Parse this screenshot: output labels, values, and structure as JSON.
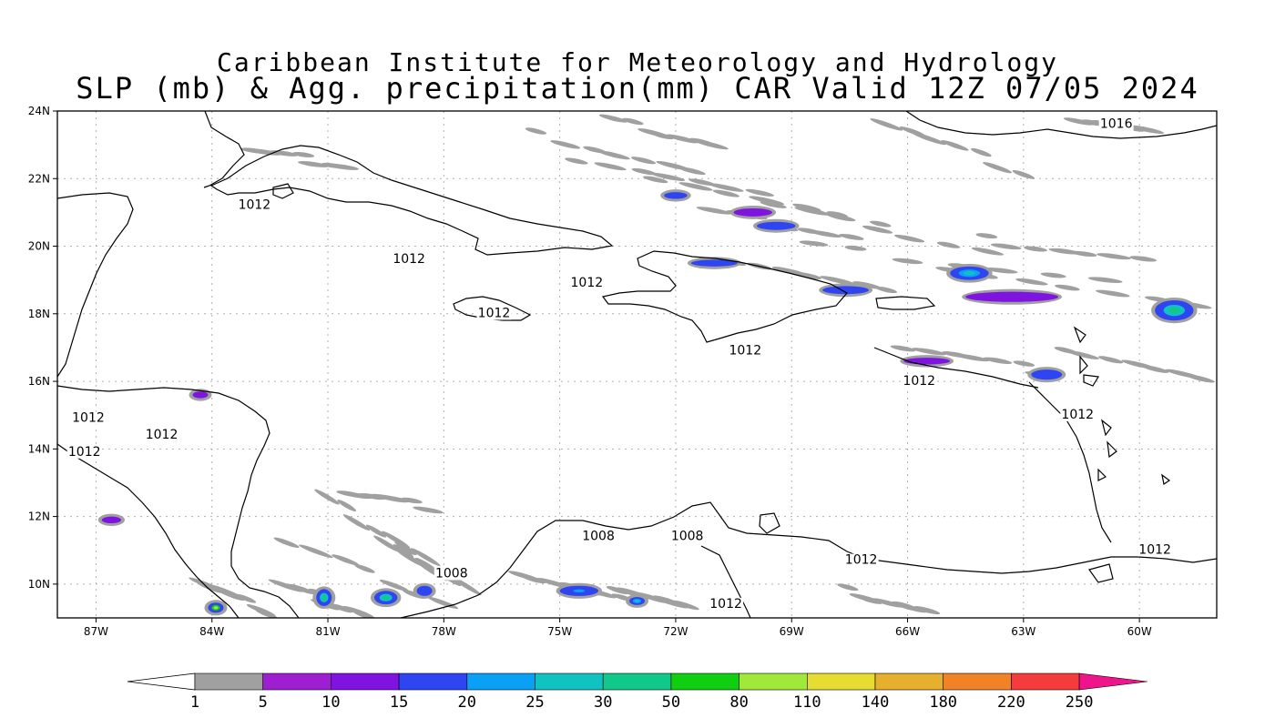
{
  "title_line1": "Caribbean Institute for Meteorology and Hydrology",
  "title_line2": "SLP (mb) & Agg. precipitation(mm) CAR Valid 12Z 07/05 2024",
  "map": {
    "lon_range": [
      -88,
      -58
    ],
    "lat_range": [
      9,
      24
    ],
    "lon_ticks": [
      {
        "lon": -87,
        "label": "87W"
      },
      {
        "lon": -84,
        "label": "84W"
      },
      {
        "lon": -81,
        "label": "81W"
      },
      {
        "lon": -78,
        "label": "78W"
      },
      {
        "lon": -75,
        "label": "75W"
      },
      {
        "lon": -72,
        "label": "72W"
      },
      {
        "lon": -69,
        "label": "69W"
      },
      {
        "lon": -66,
        "label": "66W"
      },
      {
        "lon": -63,
        "label": "63W"
      },
      {
        "lon": -60,
        "label": "60W"
      }
    ],
    "lat_ticks": [
      {
        "lat": 24,
        "label": "24N"
      },
      {
        "lat": 22,
        "label": "22N"
      },
      {
        "lat": 20,
        "label": "20N"
      },
      {
        "lat": 18,
        "label": "18N"
      },
      {
        "lat": 16,
        "label": "16N"
      },
      {
        "lat": 14,
        "label": "14N"
      },
      {
        "lat": 12,
        "label": "12N"
      },
      {
        "lat": 10,
        "label": "10N"
      }
    ],
    "grid": true,
    "isobar_labels": [
      {
        "text": "1016",
        "lon": -60.6,
        "lat": 23.5
      },
      {
        "text": "1012",
        "lon": -82.9,
        "lat": 21.1
      },
      {
        "text": "1012",
        "lon": -78.9,
        "lat": 19.5
      },
      {
        "text": "1012",
        "lon": -74.3,
        "lat": 18.8
      },
      {
        "text": "1012",
        "lon": -76.7,
        "lat": 17.9
      },
      {
        "text": "1012",
        "lon": -70.2,
        "lat": 16.8
      },
      {
        "text": "1012",
        "lon": -65.7,
        "lat": 15.9
      },
      {
        "text": "1012",
        "lon": -61.6,
        "lat": 14.9
      },
      {
        "text": "1012",
        "lon": -87.2,
        "lat": 14.8
      },
      {
        "text": "1012",
        "lon": -85.3,
        "lat": 14.3
      },
      {
        "text": "1012",
        "lon": -87.3,
        "lat": 13.8
      },
      {
        "text": "1012",
        "lon": -59.6,
        "lat": 10.9
      },
      {
        "text": "1012",
        "lon": -67.2,
        "lat": 10.6
      },
      {
        "text": "1012",
        "lon": -70.7,
        "lat": 9.3
      },
      {
        "text": "1008",
        "lon": -74.0,
        "lat": 11.3
      },
      {
        "text": "1008",
        "lon": -71.7,
        "lat": 11.3
      },
      {
        "text": "1008",
        "lon": -77.8,
        "lat": 10.2
      }
    ],
    "precip_blobs": [
      {
        "lon": -69.4,
        "lat": 20.6,
        "rx": 0.5,
        "ry": 0.12,
        "bin": 3
      },
      {
        "lon": -67.6,
        "lat": 18.7,
        "rx": 0.6,
        "ry": 0.12,
        "bin": 3
      },
      {
        "lon": -63.3,
        "lat": 18.5,
        "rx": 1.2,
        "ry": 0.15,
        "bin": 2
      },
      {
        "lon": -59.1,
        "lat": 18.1,
        "rx": 0.5,
        "ry": 0.3,
        "bin": 6
      },
      {
        "lon": -64.4,
        "lat": 19.2,
        "rx": 0.5,
        "ry": 0.2,
        "bin": 5
      },
      {
        "lon": -70.0,
        "lat": 21.0,
        "rx": 0.5,
        "ry": 0.12,
        "bin": 2
      },
      {
        "lon": -81.1,
        "lat": 9.6,
        "rx": 0.2,
        "ry": 0.25,
        "bin": 6
      },
      {
        "lon": -79.5,
        "lat": 9.6,
        "rx": 0.3,
        "ry": 0.2,
        "bin": 6
      },
      {
        "lon": -83.9,
        "lat": 9.3,
        "rx": 0.2,
        "ry": 0.15,
        "bin": 8
      },
      {
        "lon": -74.5,
        "lat": 9.8,
        "rx": 0.5,
        "ry": 0.15,
        "bin": 4
      },
      {
        "lon": -73.0,
        "lat": 9.5,
        "rx": 0.2,
        "ry": 0.12,
        "bin": 5
      },
      {
        "lon": -72.0,
        "lat": 21.5,
        "rx": 0.3,
        "ry": 0.1,
        "bin": 3
      },
      {
        "lon": -65.5,
        "lat": 16.6,
        "rx": 0.6,
        "ry": 0.1,
        "bin": 2
      },
      {
        "lon": -62.4,
        "lat": 16.2,
        "rx": 0.4,
        "ry": 0.15,
        "bin": 3
      },
      {
        "lon": -71.0,
        "lat": 19.5,
        "rx": 0.6,
        "ry": 0.1,
        "bin": 3
      },
      {
        "lon": -78.5,
        "lat": 9.8,
        "rx": 0.2,
        "ry": 0.15,
        "bin": 3
      },
      {
        "lon": -86.6,
        "lat": 11.9,
        "rx": 0.25,
        "ry": 0.1,
        "bin": 2
      },
      {
        "lon": -84.3,
        "lat": 15.6,
        "rx": 0.2,
        "ry": 0.1,
        "bin": 2
      }
    ]
  },
  "colorbar": {
    "labels": [
      "1",
      "5",
      "10",
      "15",
      "20",
      "25",
      "30",
      "50",
      "80",
      "110",
      "140",
      "180",
      "220",
      "250"
    ],
    "colors": [
      "#a0a0a0",
      "#9e1ed2",
      "#7f13e0",
      "#2f45f2",
      "#0aa0f5",
      "#10c2c2",
      "#10c88a",
      "#10cf10",
      "#a0e83a",
      "#e6dc32",
      "#e6af2d",
      "#f08228",
      "#f53c3c",
      "#f0148c"
    ],
    "under_color": "#ffffff"
  }
}
